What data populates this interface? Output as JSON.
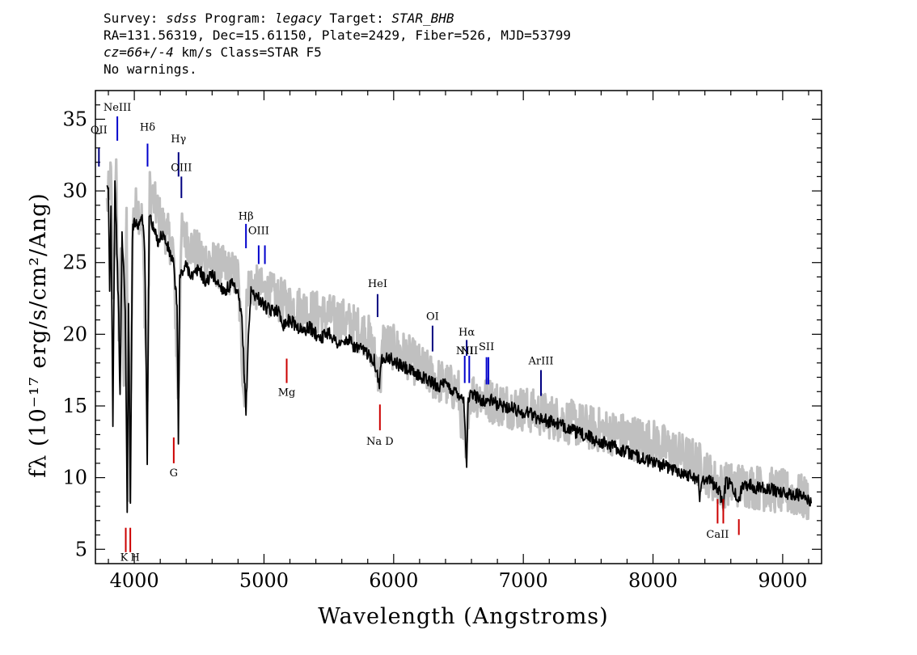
{
  "header": {
    "line1_survey_label": "Survey: ",
    "line1_survey": "sdss",
    "line1_program_label": " Program: ",
    "line1_program": "legacy",
    "line1_target_label": " Target: ",
    "line1_target": "STAR_BHB",
    "line2": "RA=131.56319, Dec=15.61150, Plate=2429, Fiber=526, MJD=53799",
    "line3_cz": "cz=66+/-4",
    "line3_rest": " km/s Class=STAR F5",
    "line4": "No warnings."
  },
  "chart_data": {
    "type": "line",
    "xlabel": "Wavelength (Angstroms)",
    "ylabel": "fλ (10⁻¹⁷ erg/s/cm²/Ang)",
    "xlim": [
      3700,
      9300
    ],
    "ylim": [
      4,
      37
    ],
    "x_ticks": [
      4000,
      5000,
      6000,
      7000,
      8000,
      9000
    ],
    "y_ticks": [
      5,
      10,
      15,
      20,
      25,
      30,
      35
    ],
    "series": [
      {
        "style": "error-band-gray",
        "points": [
          [
            3790,
            29
          ],
          [
            3820,
            31
          ],
          [
            3835,
            22
          ],
          [
            3860,
            31
          ],
          [
            3880,
            20
          ],
          [
            3900,
            26
          ],
          [
            3920,
            17
          ],
          [
            3940,
            28
          ],
          [
            3960,
            9
          ],
          [
            3970,
            15
          ],
          [
            3990,
            28
          ],
          [
            4020,
            29
          ],
          [
            4060,
            28
          ],
          [
            4100,
            16
          ],
          [
            4120,
            30
          ],
          [
            4200,
            28
          ],
          [
            4300,
            26
          ],
          [
            4340,
            15
          ],
          [
            4360,
            27
          ],
          [
            4500,
            25.5
          ],
          [
            4600,
            25
          ],
          [
            4700,
            24.5
          ],
          [
            4800,
            24
          ],
          [
            4850,
            15
          ],
          [
            4870,
            23.5
          ],
          [
            5000,
            23
          ],
          [
            5200,
            22
          ],
          [
            5400,
            21.5
          ],
          [
            5600,
            21
          ],
          [
            5800,
            20
          ],
          [
            5900,
            17
          ],
          [
            5920,
            19.5
          ],
          [
            6100,
            18.5
          ],
          [
            6300,
            17
          ],
          [
            6500,
            16
          ],
          [
            6560,
            11
          ],
          [
            6580,
            16
          ],
          [
            6800,
            15.2
          ],
          [
            7000,
            14.8
          ],
          [
            7500,
            13.5
          ],
          [
            8000,
            12.5
          ],
          [
            8350,
            11
          ],
          [
            8500,
            9.5
          ],
          [
            8700,
            9.5
          ],
          [
            9000,
            9
          ],
          [
            9200,
            8.5
          ]
        ]
      },
      {
        "style": "flux-black",
        "points": [
          [
            3790,
            30
          ],
          [
            3800,
            30
          ],
          [
            3810,
            23
          ],
          [
            3820,
            29
          ],
          [
            3835,
            14
          ],
          [
            3850,
            31
          ],
          [
            3865,
            26
          ],
          [
            3880,
            21
          ],
          [
            3890,
            15.5
          ],
          [
            3905,
            27
          ],
          [
            3930,
            22
          ],
          [
            3945,
            7.5
          ],
          [
            3955,
            22
          ],
          [
            3970,
            8
          ],
          [
            3985,
            27
          ],
          [
            4000,
            28
          ],
          [
            4030,
            27.5
          ],
          [
            4060,
            28.5
          ],
          [
            4080,
            26
          ],
          [
            4100,
            11
          ],
          [
            4115,
            28.5
          ],
          [
            4140,
            27.5
          ],
          [
            4180,
            26.5
          ],
          [
            4220,
            27
          ],
          [
            4260,
            26
          ],
          [
            4300,
            25
          ],
          [
            4330,
            22
          ],
          [
            4340,
            12.5
          ],
          [
            4350,
            24
          ],
          [
            4400,
            24.8
          ],
          [
            4450,
            24
          ],
          [
            4500,
            24.6
          ],
          [
            4550,
            23.6
          ],
          [
            4600,
            24.2
          ],
          [
            4650,
            23.5
          ],
          [
            4700,
            23
          ],
          [
            4750,
            23.5
          ],
          [
            4800,
            22.7
          ],
          [
            4830,
            21
          ],
          [
            4861,
            14.5
          ],
          [
            4880,
            20
          ],
          [
            4900,
            23
          ],
          [
            4950,
            22.6
          ],
          [
            5000,
            22
          ],
          [
            5050,
            21.6
          ],
          [
            5100,
            21.8
          ],
          [
            5150,
            20.7
          ],
          [
            5200,
            21
          ],
          [
            5250,
            20.6
          ],
          [
            5300,
            20.2
          ],
          [
            5350,
            20.5
          ],
          [
            5400,
            20
          ],
          [
            5450,
            19.8
          ],
          [
            5500,
            20.2
          ],
          [
            5550,
            19.5
          ],
          [
            5600,
            19.3
          ],
          [
            5650,
            19.6
          ],
          [
            5700,
            19.1
          ],
          [
            5750,
            18.9
          ],
          [
            5800,
            18.7
          ],
          [
            5850,
            18.2
          ],
          [
            5890,
            16.5
          ],
          [
            5910,
            18.4
          ],
          [
            5950,
            18.5
          ],
          [
            6000,
            18.1
          ],
          [
            6050,
            17.8
          ],
          [
            6100,
            17.6
          ],
          [
            6150,
            17.3
          ],
          [
            6200,
            17.1
          ],
          [
            6250,
            16.9
          ],
          [
            6300,
            16.6
          ],
          [
            6350,
            16.4
          ],
          [
            6400,
            16.5
          ],
          [
            6450,
            16.1
          ],
          [
            6500,
            15.9
          ],
          [
            6540,
            15.5
          ],
          [
            6563,
            11
          ],
          [
            6575,
            15.5
          ],
          [
            6600,
            15.8
          ],
          [
            6650,
            15.6
          ],
          [
            6700,
            15.3
          ],
          [
            6750,
            15.4
          ],
          [
            6800,
            15.1
          ],
          [
            6850,
            15
          ],
          [
            6900,
            14.9
          ],
          [
            6950,
            14.7
          ],
          [
            7000,
            14.5
          ],
          [
            7050,
            14.6
          ],
          [
            7100,
            14.2
          ],
          [
            7150,
            14.1
          ],
          [
            7200,
            13.9
          ],
          [
            7250,
            13.8
          ],
          [
            7300,
            13.6
          ],
          [
            7350,
            13.5
          ],
          [
            7400,
            13.2
          ],
          [
            7450,
            13
          ],
          [
            7500,
            12.9
          ],
          [
            7550,
            12.6
          ],
          [
            7600,
            12.5
          ],
          [
            7650,
            12.3
          ],
          [
            7700,
            12.2
          ],
          [
            7750,
            11.9
          ],
          [
            7800,
            11.8
          ],
          [
            7850,
            11.6
          ],
          [
            7900,
            11.4
          ],
          [
            7950,
            11.2
          ],
          [
            8000,
            11.1
          ],
          [
            8050,
            10.9
          ],
          [
            8100,
            10.8
          ],
          [
            8150,
            10.6
          ],
          [
            8200,
            10.5
          ],
          [
            8250,
            10.2
          ],
          [
            8300,
            10.2
          ],
          [
            8350,
            9.8
          ],
          [
            8360,
            8.5
          ],
          [
            8380,
            10
          ],
          [
            8430,
            9.9
          ],
          [
            8500,
            9.3
          ],
          [
            8542,
            8
          ],
          [
            8560,
            9.7
          ],
          [
            8600,
            9.5
          ],
          [
            8662,
            8.3
          ],
          [
            8690,
            9.6
          ],
          [
            8750,
            9.5
          ],
          [
            8800,
            9.3
          ],
          [
            8850,
            9.4
          ],
          [
            8900,
            9.2
          ],
          [
            8950,
            9.1
          ],
          [
            9000,
            9
          ],
          [
            9050,
            8.8
          ],
          [
            9100,
            8.9
          ],
          [
            9150,
            8.6
          ],
          [
            9200,
            8.5
          ],
          [
            9220,
            8.2
          ]
        ]
      }
    ],
    "line_markers": [
      {
        "label": "NeIII",
        "wave": 3869,
        "color": "#0000cc",
        "side": "top",
        "y1": 33.5,
        "y2": 35.2,
        "label_y": 35.6
      },
      {
        "label": "Hδ",
        "wave": 4102,
        "color": "#0000cc",
        "side": "top",
        "y1": 31.7,
        "y2": 33.3,
        "label_y": 34.2
      },
      {
        "label": "Hγ",
        "wave": 4341,
        "color": "#000080",
        "side": "top",
        "y1": 31.0,
        "y2": 32.7,
        "label_y": 33.4
      },
      {
        "label": "OIII",
        "wave": 4363,
        "color": "#000080",
        "side": "top",
        "y1": 29.5,
        "y2": 31.0,
        "label_y": 31.4
      },
      {
        "label": "Hβ",
        "wave": 4861,
        "color": "#0000cc",
        "side": "top",
        "y1": 26.0,
        "y2": 27.7,
        "label_y": 28.0
      },
      {
        "label": "OIII",
        "wave": 4959,
        "color": "#0000cc",
        "side": "top",
        "y1": 24.9,
        "y2": 26.2,
        "label_y": 27.0
      },
      {
        "label": "OIII",
        "wave": 5007,
        "color": "#0000cc",
        "side": "top",
        "y1": 24.9,
        "y2": 26.2,
        "label_y": null
      },
      {
        "label": "HeI",
        "wave": 5876,
        "color": "#000080",
        "side": "top",
        "y1": 21.2,
        "y2": 22.8,
        "label_y": 23.3
      },
      {
        "label": "OI",
        "wave": 6300,
        "color": "#000080",
        "side": "top",
        "y1": 18.8,
        "y2": 20.6,
        "label_y": 21.0
      },
      {
        "label": "NII",
        "wave": 6548,
        "color": "#0000cc",
        "side": "top",
        "y1": 16.6,
        "y2": 18.5,
        "label_y": 18.6
      },
      {
        "label": "Hα",
        "wave": 6563,
        "color": "#000080",
        "side": "top",
        "y1": 18.5,
        "y2": 19.6,
        "label_y": 19.9
      },
      {
        "label": "NII",
        "wave": 6583,
        "color": "#0000cc",
        "side": "top",
        "y1": 16.6,
        "y2": 18.5,
        "label_y": 18.6
      },
      {
        "label": "SII",
        "wave": 6716,
        "color": "#0000cc",
        "side": "top",
        "y1": 16.5,
        "y2": 18.4,
        "label_y": 18.9
      },
      {
        "label": "SII",
        "wave": 6731,
        "color": "#0000cc",
        "side": "top",
        "y1": 16.5,
        "y2": 18.4,
        "label_y": null
      },
      {
        "label": "ArIII",
        "wave": 7136,
        "color": "#000080",
        "side": "top",
        "y1": 15.7,
        "y2": 17.5,
        "label_y": 17.9
      },
      {
        "label": "K",
        "wave": 3934,
        "color": "#cc0000",
        "side": "bottom",
        "y1": 4.8,
        "y2": 6.5,
        "label_y": 4.2
      },
      {
        "label": "H",
        "wave": 3969,
        "color": "#cc0000",
        "side": "bottom",
        "y1": 4.8,
        "y2": 6.5,
        "label_y": 4.2
      },
      {
        "label": "G",
        "wave": 4304,
        "color": "#cc0000",
        "side": "bottom",
        "y1": 11.0,
        "y2": 12.8,
        "label_y": 10.1
      },
      {
        "label": "Mg",
        "wave": 5175,
        "color": "#cc0000",
        "side": "bottom",
        "y1": 16.6,
        "y2": 18.3,
        "label_y": 15.7
      },
      {
        "label": "Na D",
        "wave": 5894,
        "color": "#cc0000",
        "side": "bottom",
        "y1": 13.3,
        "y2": 15.1,
        "label_y": 12.3
      },
      {
        "label": "CaII",
        "wave": 8498,
        "color": "#cc0000",
        "side": "bottom",
        "y1": 6.8,
        "y2": 8.5,
        "label_y": 5.8
      },
      {
        "label": "CaII",
        "wave": 8542,
        "color": "#cc0000",
        "side": "bottom",
        "y1": 6.8,
        "y2": 8.5,
        "label_y": null
      },
      {
        "label": "CaII",
        "wave": 8662,
        "color": "#cc0000",
        "side": "bottom",
        "y1": 6.0,
        "y2": 7.1,
        "label_y": null
      },
      {
        "label": "OII",
        "wave": 3727,
        "color": "#000080",
        "side": "top",
        "y1": 31.7,
        "y2": 33.0,
        "label_y": 34.0
      }
    ]
  }
}
